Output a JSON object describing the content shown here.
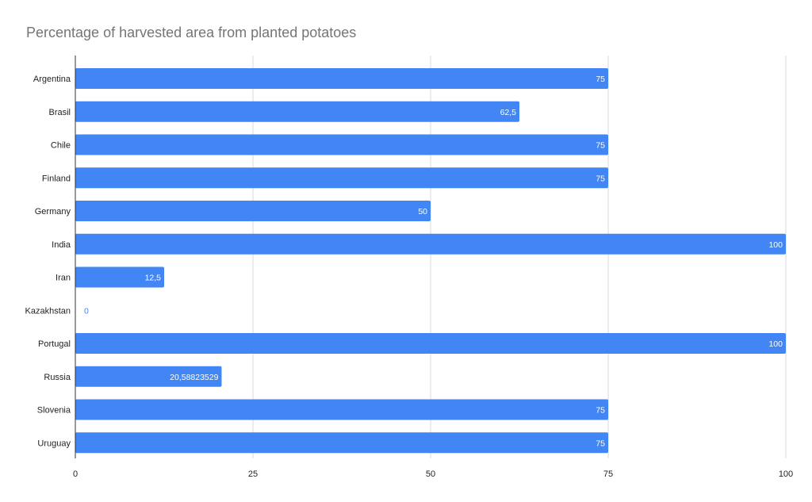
{
  "chart_data": {
    "type": "bar",
    "orientation": "horizontal",
    "title": "Percentage of harvested area from planted potatoes",
    "categories": [
      "Argentina",
      "Brasil",
      "Chile",
      "Finland",
      "Germany",
      "India",
      "Iran",
      "Kazakhstan",
      "Portugal",
      "Russia",
      "Slovenia",
      "Uruguay"
    ],
    "values": [
      75,
      62.5,
      75,
      75,
      50,
      100,
      12.5,
      0,
      100,
      20.58823529,
      75,
      75
    ],
    "value_labels": [
      "75",
      "62,5",
      "75",
      "75",
      "50",
      "100",
      "12,5",
      "0",
      "100",
      "20,58823529",
      "75",
      "75"
    ],
    "xlim": [
      0,
      100
    ],
    "xticks": [
      0,
      25,
      50,
      75,
      100
    ],
    "xtick_labels": [
      "0",
      "25",
      "50",
      "75",
      "100"
    ],
    "grid": true,
    "legend": "none",
    "xlabel": "",
    "ylabel": "",
    "bar_color": "#4285f4",
    "inside_label_color": "#ffffff",
    "outside_label_color": "#4285f4"
  }
}
